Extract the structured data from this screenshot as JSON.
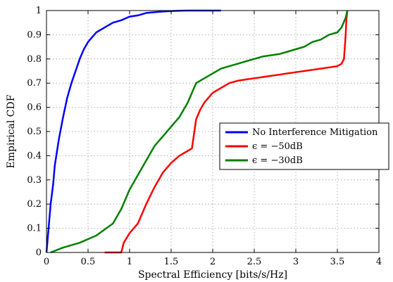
{
  "chart_data": {
    "type": "line",
    "title": "",
    "xlabel": "Spectral Efficiency [bits/s/Hz]",
    "ylabel": "Empirical CDF",
    "xlim": [
      0,
      4
    ],
    "ylim": [
      0,
      1
    ],
    "xticks": [
      "0",
      "0.5",
      "1",
      "1.5",
      "2",
      "2.5",
      "3",
      "3.5",
      "4"
    ],
    "yticks": [
      "0",
      "0.1",
      "0.2",
      "0.3",
      "0.4",
      "0.5",
      "0.6",
      "0.7",
      "0.8",
      "0.9",
      "1"
    ],
    "grid": true,
    "legend_position": "center-right",
    "series": [
      {
        "name": "No Interference Mitigation",
        "color": "#0000ff",
        "x": [
          0.0,
          0.02,
          0.05,
          0.08,
          0.1,
          0.15,
          0.2,
          0.25,
          0.3,
          0.35,
          0.4,
          0.45,
          0.5,
          0.55,
          0.6,
          0.7,
          0.8,
          0.9,
          1.0,
          1.1,
          1.2,
          1.3,
          1.4,
          1.5,
          1.6,
          1.7,
          2.1
        ],
        "y": [
          0.0,
          0.08,
          0.2,
          0.28,
          0.36,
          0.47,
          0.56,
          0.64,
          0.7,
          0.75,
          0.8,
          0.84,
          0.87,
          0.89,
          0.91,
          0.93,
          0.95,
          0.96,
          0.975,
          0.98,
          0.99,
          0.993,
          0.996,
          0.998,
          0.999,
          1.0,
          1.0
        ]
      },
      {
        "name": "$\\epsilon = -50dB$",
        "color": "#ff0000",
        "x": [
          0.7,
          0.9,
          0.93,
          1.0,
          1.1,
          1.2,
          1.3,
          1.4,
          1.5,
          1.6,
          1.7,
          1.75,
          1.78,
          1.8,
          1.85,
          1.9,
          2.0,
          2.1,
          2.2,
          2.3,
          2.4,
          2.5,
          2.6,
          2.7,
          2.8,
          2.9,
          3.0,
          3.1,
          3.2,
          3.3,
          3.4,
          3.5,
          3.55,
          3.58,
          3.6,
          3.61,
          3.62
        ],
        "y": [
          0.0,
          0.0,
          0.04,
          0.08,
          0.12,
          0.2,
          0.27,
          0.33,
          0.37,
          0.4,
          0.42,
          0.43,
          0.5,
          0.55,
          0.59,
          0.62,
          0.66,
          0.68,
          0.7,
          0.71,
          0.715,
          0.72,
          0.725,
          0.73,
          0.735,
          0.74,
          0.745,
          0.75,
          0.755,
          0.76,
          0.765,
          0.77,
          0.78,
          0.8,
          0.9,
          0.97,
          1.0
        ]
      },
      {
        "name": "$\\epsilon = -30dB$",
        "color": "#008000",
        "x": [
          0.05,
          0.2,
          0.4,
          0.6,
          0.8,
          0.9,
          1.0,
          1.1,
          1.2,
          1.3,
          1.4,
          1.5,
          1.6,
          1.7,
          1.75,
          1.8,
          1.9,
          2.0,
          2.1,
          2.2,
          2.3,
          2.4,
          2.5,
          2.6,
          2.7,
          2.8,
          2.9,
          3.0,
          3.1,
          3.2,
          3.3,
          3.4,
          3.5,
          3.55,
          3.6,
          3.62
        ],
        "y": [
          0.0,
          0.02,
          0.04,
          0.07,
          0.12,
          0.18,
          0.26,
          0.32,
          0.38,
          0.44,
          0.48,
          0.52,
          0.56,
          0.62,
          0.66,
          0.7,
          0.72,
          0.74,
          0.76,
          0.77,
          0.78,
          0.79,
          0.8,
          0.81,
          0.815,
          0.82,
          0.83,
          0.84,
          0.85,
          0.87,
          0.88,
          0.9,
          0.91,
          0.93,
          0.97,
          1.0
        ]
      }
    ]
  },
  "legend": {
    "items": [
      {
        "label": "No Interference Mitigation",
        "color": "#0000ff"
      },
      {
        "label": "ϵ = −50dB",
        "color": "#ff0000"
      },
      {
        "label": "ϵ = −30dB",
        "color": "#008000"
      }
    ]
  }
}
